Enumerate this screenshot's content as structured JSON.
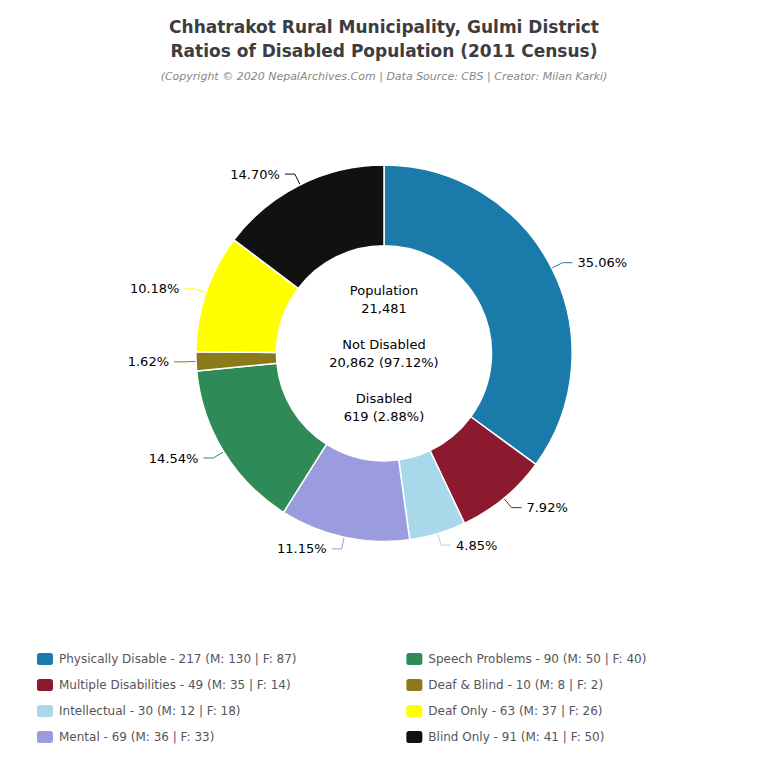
{
  "chart_data": {
    "type": "donut",
    "title": "Chhatrakot Rural Municipality, Gulmi District\nRatios of Disabled Population (2011 Census)",
    "subtitle": "(Copyright © 2020 NepalArchives.Com | Data Source: CBS | Creator: Milan Karki)",
    "categories": [
      "Physically Disable - 217 (M: 130 | F: 87)",
      "Multiple Disabilities - 49 (M: 35 | F: 14)",
      "Intellectual - 30 (M: 12 | F: 18)",
      "Mental - 69 (M: 36 | F: 33)",
      "Speech Problems - 90 (M: 50 | F: 40)",
      "Deaf & Blind - 10 (M: 8 | F: 2)",
      "Deaf Only - 63 (M: 37 | F: 26)",
      "Blind Only - 91 (M: 41 | F: 50)"
    ],
    "values": [
      35.06,
      7.92,
      4.85,
      11.15,
      14.54,
      1.62,
      10.18,
      14.7
    ],
    "value_labels": [
      "35.06%",
      "7.92%",
      "4.85%",
      "11.15%",
      "14.54%",
      "1.62%",
      "10.18%",
      "14.70%"
    ],
    "data_labels": true,
    "colors": [
      "#1a7aaa",
      "#8b1a2e",
      "#a8d8ea",
      "#9b9be0",
      "#2e8b57",
      "#8b7a1a",
      "#ffff00",
      "#111111"
    ],
    "annotations": [
      "Population\n21,481\n\nNot Disabled\n20,862 (97.12%)\n\nDisabled\n619 (2.88%)"
    ],
    "legend": "bottom"
  }
}
